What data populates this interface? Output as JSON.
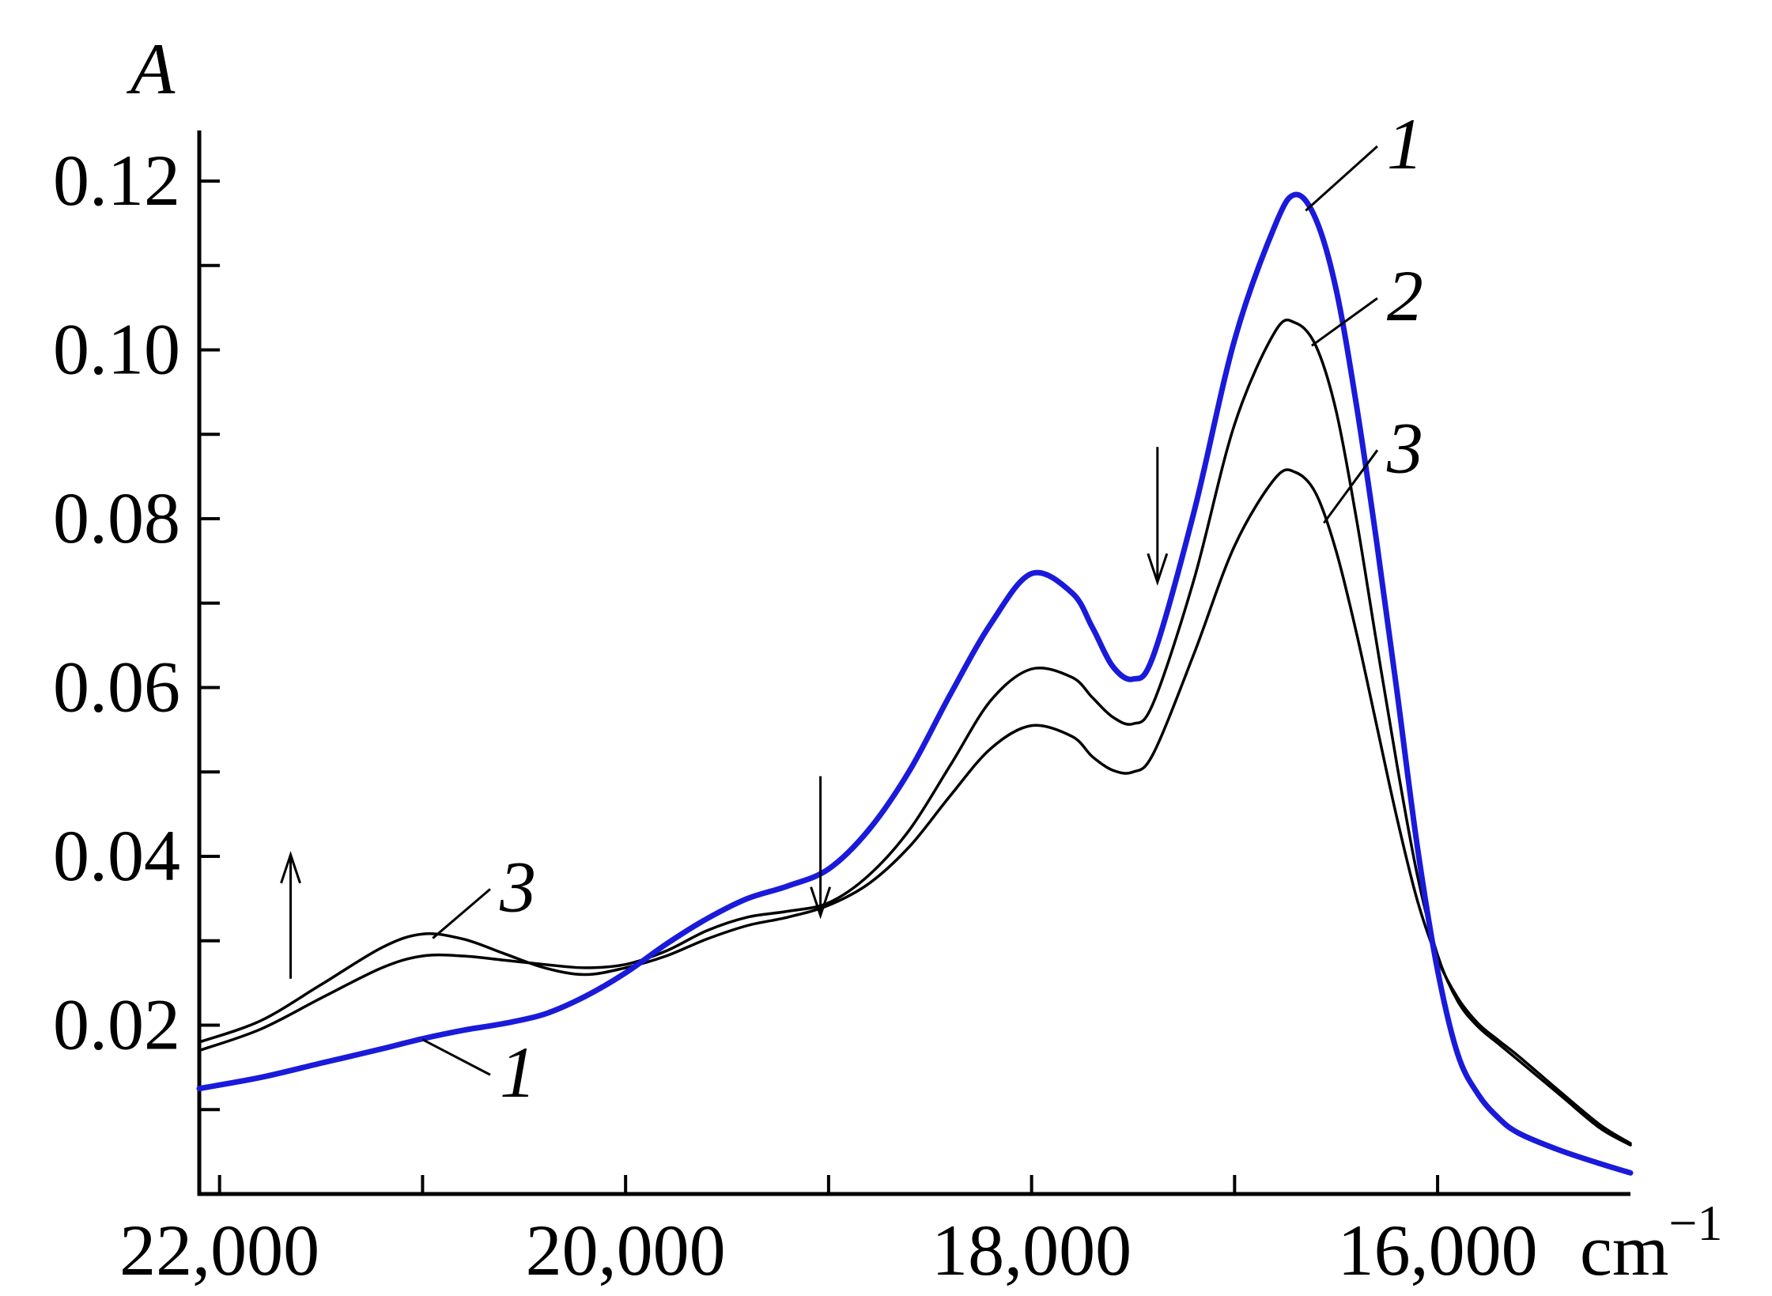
{
  "chart_data": {
    "type": "line",
    "ylabel": "A",
    "xunit": "cm−1",
    "xlim": [
      22100,
      15050
    ],
    "ylim": [
      0.0,
      0.126
    ],
    "x_major_ticks": [
      22000,
      20000,
      18000,
      16000
    ],
    "x_tick_labels": [
      "22,000",
      "20,000",
      "18,000",
      "16,000"
    ],
    "x_minor_ticks": [
      21000,
      19000,
      17000
    ],
    "y_major_ticks": [
      0.02,
      0.04,
      0.06,
      0.08,
      0.1,
      0.12
    ],
    "y_tick_labels": [
      "0.02",
      "0.04",
      "0.06",
      "0.08",
      "0.10",
      "0.12"
    ],
    "y_minor_ticks": [
      0.01,
      0.03,
      0.05,
      0.07,
      0.09,
      0.11
    ],
    "grid": false,
    "series": [
      {
        "name": "1",
        "color": "#1a1adb",
        "x": [
          22100,
          21800,
          21500,
          21200,
          21000,
          20800,
          20600,
          20400,
          20200,
          20000,
          19800,
          19600,
          19400,
          19200,
          19000,
          18800,
          18600,
          18400,
          18200,
          18000,
          17800,
          17700,
          17600,
          17500,
          17400,
          17200,
          17000,
          16800,
          16700,
          16600,
          16500,
          16400,
          16300,
          16200,
          16100,
          16000,
          15900,
          15800,
          15700,
          15600,
          15400,
          15200,
          15050
        ],
        "y": [
          0.0125,
          0.0138,
          0.0155,
          0.0172,
          0.0184,
          0.0194,
          0.0202,
          0.0213,
          0.0234,
          0.0262,
          0.0296,
          0.0326,
          0.035,
          0.0365,
          0.0385,
          0.0432,
          0.0502,
          0.0592,
          0.0676,
          0.0735,
          0.0712,
          0.0671,
          0.0625,
          0.061,
          0.0638,
          0.0808,
          0.1012,
          0.1148,
          0.1184,
          0.1155,
          0.1072,
          0.0935,
          0.0772,
          0.0595,
          0.0412,
          0.0265,
          0.0165,
          0.0118,
          0.009,
          0.0072,
          0.0052,
          0.0036,
          0.0025
        ]
      },
      {
        "name": "2",
        "color": "#000000",
        "x": [
          22100,
          21800,
          21500,
          21200,
          21000,
          20800,
          20600,
          20400,
          20200,
          20000,
          19800,
          19600,
          19400,
          19200,
          19000,
          18800,
          18600,
          18400,
          18200,
          18000,
          17800,
          17700,
          17600,
          17500,
          17400,
          17200,
          17000,
          16800,
          16700,
          16600,
          16500,
          16400,
          16300,
          16200,
          16100,
          16000,
          15900,
          15800,
          15700,
          15600,
          15400,
          15200,
          15050
        ],
        "y": [
          0.017,
          0.0195,
          0.0232,
          0.0268,
          0.0282,
          0.0282,
          0.0277,
          0.0272,
          0.0268,
          0.0272,
          0.0288,
          0.0312,
          0.0328,
          0.0335,
          0.0345,
          0.0378,
          0.0432,
          0.0508,
          0.0585,
          0.0622,
          0.0612,
          0.0588,
          0.0565,
          0.0557,
          0.0582,
          0.0728,
          0.0912,
          0.1022,
          0.1032,
          0.1005,
          0.0928,
          0.08,
          0.0652,
          0.0508,
          0.0378,
          0.0283,
          0.0228,
          0.0198,
          0.0178,
          0.0158,
          0.0118,
          0.0078,
          0.0058
        ]
      },
      {
        "name": "3",
        "color": "#000000",
        "x": [
          22100,
          21800,
          21500,
          21200,
          21000,
          20800,
          20600,
          20400,
          20200,
          20000,
          19800,
          19600,
          19400,
          19200,
          19000,
          18800,
          18600,
          18400,
          18200,
          18000,
          17800,
          17700,
          17600,
          17500,
          17400,
          17200,
          17000,
          16800,
          16700,
          16600,
          16500,
          16400,
          16300,
          16200,
          16100,
          16000,
          15900,
          15800,
          15700,
          15600,
          15400,
          15200,
          15050
        ],
        "y": [
          0.018,
          0.0205,
          0.0248,
          0.0292,
          0.0308,
          0.0302,
          0.0285,
          0.0268,
          0.026,
          0.0268,
          0.0282,
          0.0302,
          0.0318,
          0.0328,
          0.0342,
          0.0368,
          0.0412,
          0.0472,
          0.0528,
          0.0555,
          0.0542,
          0.0518,
          0.0502,
          0.05,
          0.0522,
          0.064,
          0.0768,
          0.0848,
          0.0855,
          0.083,
          0.0762,
          0.0665,
          0.0555,
          0.0445,
          0.0348,
          0.0278,
          0.0232,
          0.0202,
          0.0182,
          0.0163,
          0.0122,
          0.0082,
          0.006
        ]
      }
    ],
    "curve_labels": [
      {
        "text": "1",
        "x": 16250,
        "y": 0.1215,
        "anchor_x": 16650,
        "anchor_y": 0.1165
      },
      {
        "text": "2",
        "x": 16250,
        "y": 0.1035,
        "anchor_x": 16620,
        "anchor_y": 0.1005
      },
      {
        "text": "3",
        "x": 16250,
        "y": 0.0855,
        "anchor_x": 16560,
        "anchor_y": 0.0795
      },
      {
        "text": "3",
        "x": 20620,
        "y": 0.0335,
        "anchor_x": 20950,
        "anchor_y": 0.0303
      },
      {
        "text": "1",
        "x": 20620,
        "y": 0.0115,
        "anchor_x": 21000,
        "anchor_y": 0.0183
      }
    ],
    "arrows": [
      {
        "direction": "up",
        "x": 21650,
        "y_from": 0.0255,
        "y_to": 0.0402
      },
      {
        "direction": "down",
        "x": 19040,
        "y_from": 0.0495,
        "y_to": 0.033
      },
      {
        "direction": "down",
        "x": 17380,
        "y_from": 0.0885,
        "y_to": 0.0725
      }
    ]
  }
}
